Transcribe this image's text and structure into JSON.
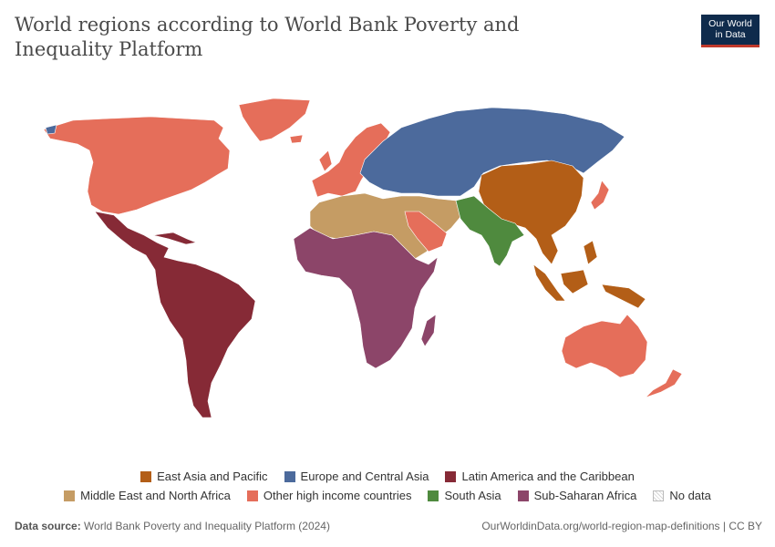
{
  "title": "World regions according to World Bank Poverty and Inequality Platform",
  "logo": {
    "line1": "Our World",
    "line2": "in Data"
  },
  "legend": [
    {
      "label": "East Asia and Pacific",
      "color": "#b35e17"
    },
    {
      "label": "Europe and Central Asia",
      "color": "#4c6a9c"
    },
    {
      "label": "Latin America and the Caribbean",
      "color": "#862a36"
    },
    {
      "label": "Middle East and North Africa",
      "color": "#c59c64"
    },
    {
      "label": "Other high income countries",
      "color": "#e56e5a"
    },
    {
      "label": "South Asia",
      "color": "#4f8a3e"
    },
    {
      "label": "Sub-Saharan Africa",
      "color": "#8c4569"
    },
    {
      "label": "No data",
      "color": "nodata"
    }
  ],
  "footer": {
    "source_label": "Data source:",
    "source_text": "World Bank Poverty and Inequality Platform (2024)",
    "url": "OurWorldinData.org/world-region-map-definitions | CC BY"
  }
}
